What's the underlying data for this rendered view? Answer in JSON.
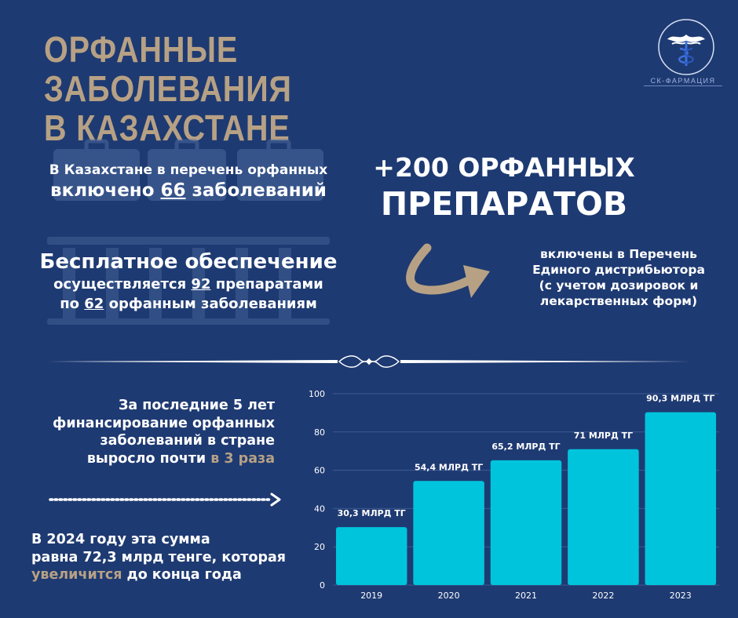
{
  "title": {
    "line1": "ОРФАННЫЕ ЗАБОЛЕВАНИЯ",
    "line2": "В КАЗАХСТАНЕ"
  },
  "logo": {
    "caption": "СК-ФАРМАЦИЯ"
  },
  "diseases": {
    "line1": "В Казахстане в перечень орфанных",
    "line2_pre": "включено ",
    "count": "66",
    "line2_post": " заболеваний"
  },
  "free_supply": {
    "line1": "Бесплатное обеспечение",
    "line2_pre": "осуществляется ",
    "drugs_count": "92",
    "line2_post": " препаратами",
    "line3_pre": "по ",
    "disease_count": "62",
    "line3_post": " орфанным заболеваниям"
  },
  "drugs_added": {
    "line1": "+200 ОРФАННЫХ",
    "line2": "ПРЕПАРАТОВ"
  },
  "included": {
    "line1": "включены в Перечень",
    "line2": "Единого дистрибьютора",
    "line3": "(с учетом дозировок и",
    "line4": "лекарственных форм)"
  },
  "funding": {
    "line1": "За последние 5 лет",
    "line2": "финансирование орфанных",
    "line3": "заболеваний в стране",
    "line4_pre": "выросло почти ",
    "line4_accent": "в 3 раза"
  },
  "year2024": {
    "line1": "В 2024 году эта сумма",
    "line2": "равна 72,3 млрд тенге, которая",
    "line3_accent": "увеличится",
    "line3_post": " до конца года"
  },
  "colors": {
    "background": "#1e3a72",
    "accent": "#b7a185",
    "bar": "#00c4dc"
  },
  "chart_data": {
    "type": "bar",
    "categories": [
      "2019",
      "2020",
      "2021",
      "2022",
      "2023"
    ],
    "values": [
      30.3,
      54.4,
      65.2,
      71,
      90.3
    ],
    "data_labels": [
      "30,3 МЛРД ТГ",
      "54,4 МЛРД ТГ",
      "65,2 МЛРД ТГ",
      "71 МЛРД ТГ",
      "90,3 МЛРД ТГ"
    ],
    "y_ticks": [
      0,
      20,
      40,
      60,
      80,
      100
    ],
    "ylim": [
      0,
      100
    ],
    "grid": true
  }
}
